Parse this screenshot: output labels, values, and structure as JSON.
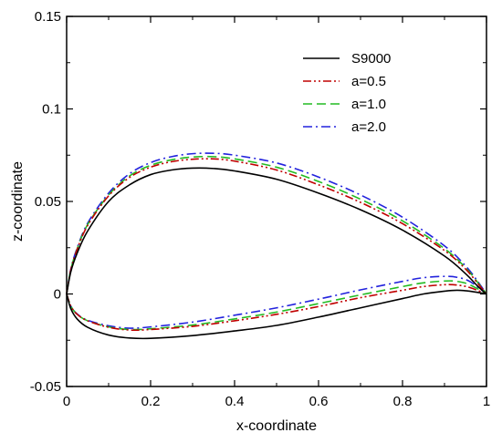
{
  "chart_data": {
    "type": "line",
    "xlabel": "x-coordinate",
    "ylabel": "z-coordinate",
    "xlim": [
      0,
      1
    ],
    "ylim": [
      -0.05,
      0.15
    ],
    "x_ticks": [
      0,
      0.2,
      0.4,
      0.6,
      0.8,
      1
    ],
    "x_tick_labels": [
      "0",
      "0.2",
      "0.4",
      "0.6",
      "0.8",
      "1"
    ],
    "y_ticks": [
      -0.05,
      0,
      0.05,
      0.1,
      0.15
    ],
    "y_tick_labels": [
      "-0.05",
      "0",
      "0.05",
      "0.1",
      "0.15"
    ],
    "grid": false,
    "legend_position": "top-right",
    "series": [
      {
        "name": "S9000",
        "color": "#000000",
        "dash": "solid",
        "upper": [
          [
            0,
            0
          ],
          [
            0.01,
            0.012
          ],
          [
            0.025,
            0.022
          ],
          [
            0.05,
            0.034
          ],
          [
            0.1,
            0.05
          ],
          [
            0.15,
            0.059
          ],
          [
            0.2,
            0.0645
          ],
          [
            0.25,
            0.067
          ],
          [
            0.3,
            0.068
          ],
          [
            0.35,
            0.0678
          ],
          [
            0.4,
            0.0665
          ],
          [
            0.5,
            0.062
          ],
          [
            0.6,
            0.0545
          ],
          [
            0.7,
            0.0455
          ],
          [
            0.8,
            0.0345
          ],
          [
            0.9,
            0.0205
          ],
          [
            0.95,
            0.011
          ],
          [
            0.98,
            0.004
          ],
          [
            1,
            0
          ]
        ],
        "lower": [
          [
            0,
            0
          ],
          [
            0.01,
            -0.008
          ],
          [
            0.025,
            -0.0135
          ],
          [
            0.05,
            -0.018
          ],
          [
            0.1,
            -0.0222
          ],
          [
            0.15,
            -0.0238
          ],
          [
            0.2,
            -0.024
          ],
          [
            0.3,
            -0.0225
          ],
          [
            0.4,
            -0.02
          ],
          [
            0.5,
            -0.017
          ],
          [
            0.6,
            -0.0125
          ],
          [
            0.7,
            -0.0075
          ],
          [
            0.8,
            -0.0025
          ],
          [
            0.85,
            0
          ],
          [
            0.9,
            0.0015
          ],
          [
            0.93,
            0.002
          ],
          [
            0.96,
            0.0015
          ],
          [
            1,
            0
          ]
        ]
      },
      {
        "name": "a=0.5",
        "color": "#c00000",
        "dash": "dash-dot-dot",
        "upper": [
          [
            0,
            0
          ],
          [
            0.01,
            0.013
          ],
          [
            0.025,
            0.024
          ],
          [
            0.05,
            0.037
          ],
          [
            0.1,
            0.053
          ],
          [
            0.15,
            0.063
          ],
          [
            0.2,
            0.0685
          ],
          [
            0.25,
            0.0715
          ],
          [
            0.3,
            0.0728
          ],
          [
            0.35,
            0.073
          ],
          [
            0.4,
            0.0718
          ],
          [
            0.5,
            0.067
          ],
          [
            0.6,
            0.059
          ],
          [
            0.7,
            0.0495
          ],
          [
            0.8,
            0.038
          ],
          [
            0.9,
            0.0235
          ],
          [
            0.95,
            0.0135
          ],
          [
            0.98,
            0.0055
          ],
          [
            1,
            0
          ]
        ],
        "lower": [
          [
            0,
            0
          ],
          [
            0.01,
            -0.0065
          ],
          [
            0.025,
            -0.011
          ],
          [
            0.05,
            -0.0145
          ],
          [
            0.1,
            -0.018
          ],
          [
            0.15,
            -0.0195
          ],
          [
            0.2,
            -0.0192
          ],
          [
            0.3,
            -0.0175
          ],
          [
            0.4,
            -0.0145
          ],
          [
            0.5,
            -0.011
          ],
          [
            0.6,
            -0.0068
          ],
          [
            0.7,
            -0.002
          ],
          [
            0.8,
            0.002
          ],
          [
            0.85,
            0.004
          ],
          [
            0.9,
            0.005
          ],
          [
            0.93,
            0.0048
          ],
          [
            0.96,
            0.0035
          ],
          [
            1,
            0
          ]
        ]
      },
      {
        "name": "a=1.0",
        "color": "#22bb22",
        "dash": "dashed",
        "upper": [
          [
            0,
            0
          ],
          [
            0.01,
            0.0132
          ],
          [
            0.025,
            0.0243
          ],
          [
            0.05,
            0.0375
          ],
          [
            0.1,
            0.0535
          ],
          [
            0.15,
            0.0638
          ],
          [
            0.2,
            0.0695
          ],
          [
            0.25,
            0.0725
          ],
          [
            0.3,
            0.074
          ],
          [
            0.35,
            0.0742
          ],
          [
            0.4,
            0.073
          ],
          [
            0.5,
            0.0685
          ],
          [
            0.6,
            0.0608
          ],
          [
            0.7,
            0.0512
          ],
          [
            0.8,
            0.0395
          ],
          [
            0.9,
            0.0245
          ],
          [
            0.95,
            0.0142
          ],
          [
            0.98,
            0.006
          ],
          [
            1,
            0
          ]
        ],
        "lower": [
          [
            0,
            0
          ],
          [
            0.01,
            -0.0065
          ],
          [
            0.025,
            -0.011
          ],
          [
            0.05,
            -0.0145
          ],
          [
            0.1,
            -0.0178
          ],
          [
            0.15,
            -0.0192
          ],
          [
            0.2,
            -0.0188
          ],
          [
            0.3,
            -0.0168
          ],
          [
            0.4,
            -0.0135
          ],
          [
            0.5,
            -0.0098
          ],
          [
            0.6,
            -0.0052
          ],
          [
            0.7,
            -0.0005
          ],
          [
            0.8,
            0.004
          ],
          [
            0.85,
            0.006
          ],
          [
            0.9,
            0.007
          ],
          [
            0.93,
            0.0068
          ],
          [
            0.96,
            0.005
          ],
          [
            1,
            0
          ]
        ]
      },
      {
        "name": "a=2.0",
        "color": "#2222dd",
        "dash": "dash-dot",
        "upper": [
          [
            0,
            0
          ],
          [
            0.01,
            0.0135
          ],
          [
            0.025,
            0.0248
          ],
          [
            0.05,
            0.0382
          ],
          [
            0.1,
            0.0545
          ],
          [
            0.15,
            0.065
          ],
          [
            0.2,
            0.071
          ],
          [
            0.25,
            0.0742
          ],
          [
            0.3,
            0.0758
          ],
          [
            0.35,
            0.076
          ],
          [
            0.4,
            0.075
          ],
          [
            0.5,
            0.0708
          ],
          [
            0.6,
            0.0632
          ],
          [
            0.7,
            0.0535
          ],
          [
            0.8,
            0.0415
          ],
          [
            0.9,
            0.026
          ],
          [
            0.95,
            0.0152
          ],
          [
            0.98,
            0.0065
          ],
          [
            1,
            0
          ]
        ],
        "lower": [
          [
            0,
            0
          ],
          [
            0.01,
            -0.0065
          ],
          [
            0.025,
            -0.0108
          ],
          [
            0.05,
            -0.0142
          ],
          [
            0.1,
            -0.0172
          ],
          [
            0.15,
            -0.0185
          ],
          [
            0.2,
            -0.0178
          ],
          [
            0.3,
            -0.0152
          ],
          [
            0.4,
            -0.0115
          ],
          [
            0.5,
            -0.0075
          ],
          [
            0.6,
            -0.0028
          ],
          [
            0.7,
            0.0022
          ],
          [
            0.8,
            0.0068
          ],
          [
            0.85,
            0.0088
          ],
          [
            0.9,
            0.0095
          ],
          [
            0.93,
            0.009
          ],
          [
            0.96,
            0.0068
          ],
          [
            1,
            0
          ]
        ]
      }
    ]
  }
}
